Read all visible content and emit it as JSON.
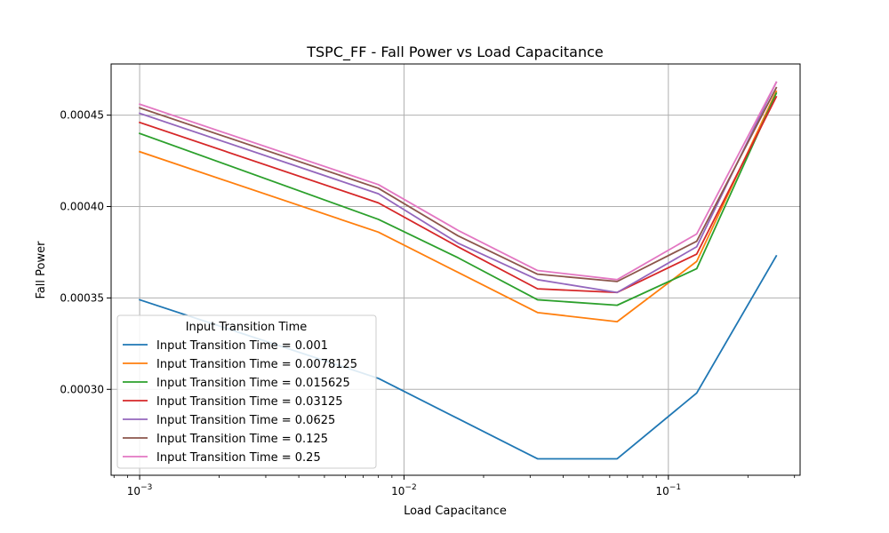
{
  "chart_data": {
    "type": "line",
    "title": "TSPC_FF - Fall Power vs Load Capacitance",
    "xlabel": "Load Capacitance",
    "ylabel": "Fall Power",
    "xscale": "log",
    "xlim": [
      0.00078,
      0.315
    ],
    "ylim": [
      0.000253,
      0.000478
    ],
    "xticks": [
      {
        "value": 0.001,
        "base": "10",
        "exp": "−3"
      },
      {
        "value": 0.01,
        "base": "10",
        "exp": "−2"
      },
      {
        "value": 0.1,
        "base": "10",
        "exp": "−1"
      }
    ],
    "yticks": [
      {
        "value": 0.0003,
        "label": "0.00030"
      },
      {
        "value": 0.00035,
        "label": "0.00035"
      },
      {
        "value": 0.0004,
        "label": "0.00040"
      },
      {
        "value": 0.00045,
        "label": "0.00045"
      }
    ],
    "grid": true,
    "legend": {
      "title": "Input Transition Time",
      "position": "lower-left"
    },
    "x": [
      0.001,
      0.008,
      0.016,
      0.032,
      0.064,
      0.128,
      0.256
    ],
    "series": [
      {
        "name": "Input Transition Time = 0.001",
        "color": "#1f77b4",
        "values": [
          0.000349,
          0.000306,
          0.000284,
          0.000262,
          0.000262,
          0.000298,
          0.000373
        ]
      },
      {
        "name": "Input Transition Time = 0.0078125",
        "color": "#ff7f0e",
        "values": [
          0.00043,
          0.000386,
          0.000364,
          0.000342,
          0.000337,
          0.00037,
          0.000463
        ]
      },
      {
        "name": "Input Transition Time = 0.015625",
        "color": "#2ca02c",
        "values": [
          0.00044,
          0.000393,
          0.000372,
          0.000349,
          0.000346,
          0.000366,
          0.000462
        ]
      },
      {
        "name": "Input Transition Time = 0.03125",
        "color": "#d62728",
        "values": [
          0.000446,
          0.000402,
          0.000378,
          0.000355,
          0.000353,
          0.000374,
          0.00046
        ]
      },
      {
        "name": "Input Transition Time = 0.0625",
        "color": "#9467bd",
        "values": [
          0.000451,
          0.000407,
          0.00038,
          0.00036,
          0.000353,
          0.000378,
          0.000468
        ]
      },
      {
        "name": "Input Transition Time = 0.125",
        "color": "#8c564b",
        "values": [
          0.000454,
          0.00041,
          0.000384,
          0.000363,
          0.000359,
          0.000381,
          0.000465
        ]
      },
      {
        "name": "Input Transition Time = 0.25",
        "color": "#e377c2",
        "values": [
          0.000456,
          0.000412,
          0.000387,
          0.000365,
          0.00036,
          0.000385,
          0.000468
        ]
      }
    ]
  }
}
